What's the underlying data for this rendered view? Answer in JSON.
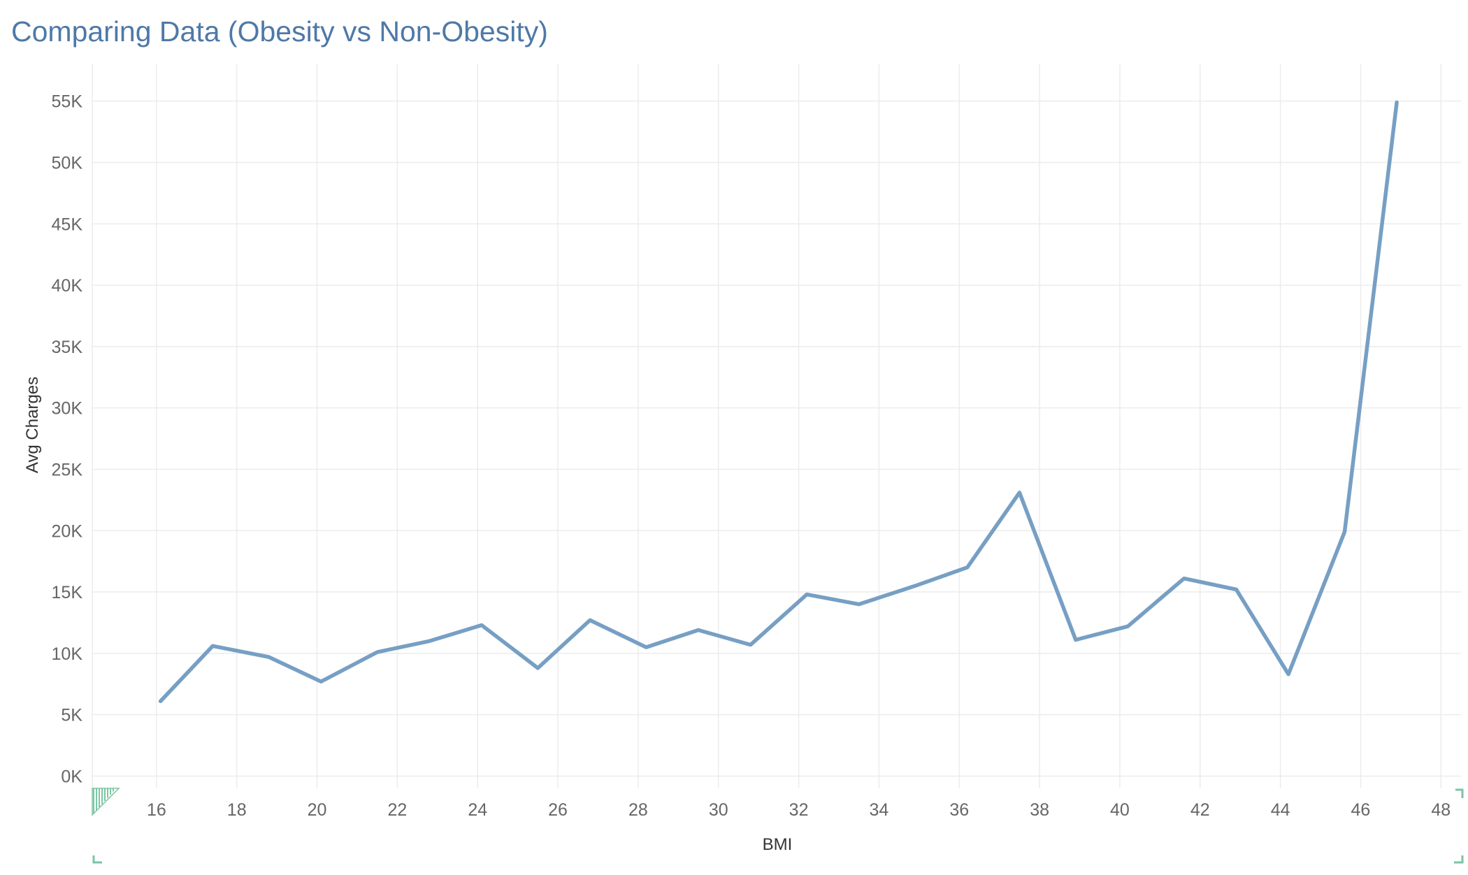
{
  "title": "Comparing Data (Obesity vs Non-Obesity)",
  "colors": {
    "title": "#4e79a7",
    "line": "#779fc4",
    "grid": "#ececec",
    "tick_text": "#666666",
    "axis_text": "#333333",
    "indicator": "#7cc5a3"
  },
  "chart_data": {
    "type": "line",
    "title": "Comparing Data (Obesity vs Non-Obesity)",
    "xlabel": "BMI",
    "ylabel": "Avg Charges",
    "xlim": [
      14.4,
      48.5
    ],
    "ylim": [
      -1000,
      58000
    ],
    "x_ticks": [
      16,
      18,
      20,
      22,
      24,
      26,
      28,
      30,
      32,
      34,
      36,
      38,
      40,
      42,
      44,
      46,
      48
    ],
    "y_ticks": [
      {
        "value": 0,
        "label": "0K"
      },
      {
        "value": 5000,
        "label": "5K"
      },
      {
        "value": 10000,
        "label": "10K"
      },
      {
        "value": 15000,
        "label": "15K"
      },
      {
        "value": 20000,
        "label": "20K"
      },
      {
        "value": 25000,
        "label": "25K"
      },
      {
        "value": 30000,
        "label": "30K"
      },
      {
        "value": 35000,
        "label": "35K"
      },
      {
        "value": 40000,
        "label": "40K"
      },
      {
        "value": 45000,
        "label": "45K"
      },
      {
        "value": 50000,
        "label": "50K"
      },
      {
        "value": 55000,
        "label": "55K"
      }
    ],
    "grid": true,
    "series": [
      {
        "x": [
          16.1,
          17.4,
          18.8,
          20.1,
          21.5,
          22.8,
          24.1,
          25.5,
          26.8,
          28.2,
          29.5,
          30.8,
          32.2,
          33.5,
          34.9,
          36.2,
          37.5,
          38.9,
          40.2,
          41.6,
          42.9,
          44.2,
          45.6,
          46.9
        ],
        "y": [
          6100,
          10600,
          9700,
          7700,
          10100,
          11000,
          12300,
          8800,
          12700,
          10500,
          11900,
          10700,
          14800,
          14000,
          15500,
          17000,
          23100,
          11100,
          12200,
          16100,
          15200,
          8300,
          19900,
          54900
        ]
      }
    ]
  }
}
